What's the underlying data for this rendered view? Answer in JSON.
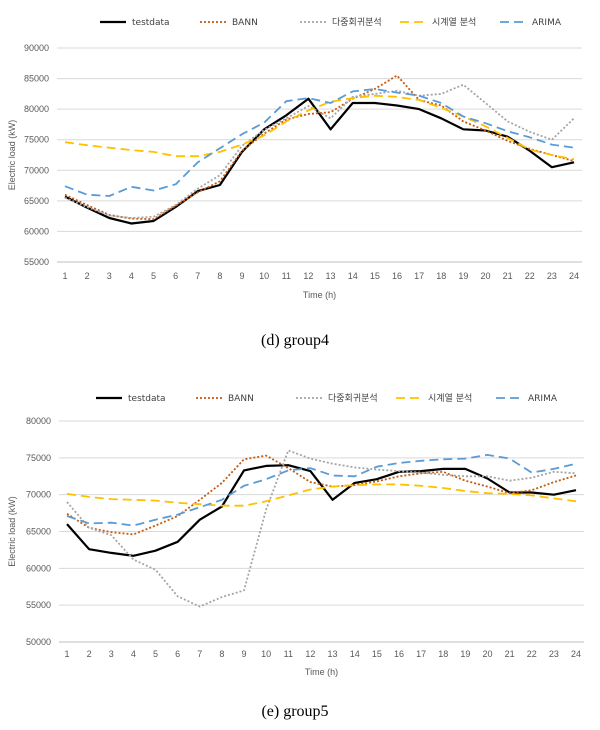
{
  "figures": [
    {
      "caption": "(d)  group4"
    },
    {
      "caption": "(e)  group5"
    }
  ],
  "chart_data": [
    {
      "type": "line",
      "title": "",
      "xlabel": "Time (h)",
      "ylabel": "Electric load (kW)",
      "ylim": [
        55000,
        90000
      ],
      "yticks": [
        55000,
        60000,
        65000,
        70000,
        75000,
        80000,
        85000,
        90000
      ],
      "categories": [
        "1",
        "2",
        "3",
        "4",
        "5",
        "6",
        "7",
        "8",
        "9",
        "10",
        "11",
        "12",
        "13",
        "14",
        "15",
        "16",
        "17",
        "18",
        "19",
        "20",
        "21",
        "22",
        "23",
        "24"
      ],
      "grid": "horizontal",
      "legend": "top",
      "series": [
        {
          "name": "testdata",
          "color": "#000000",
          "style": "solid",
          "values": [
            65700,
            63900,
            62200,
            61300,
            61700,
            64000,
            66600,
            67600,
            73000,
            76700,
            79000,
            81700,
            76700,
            81000,
            81000,
            80600,
            80000,
            78500,
            76700,
            76500,
            75500,
            73200,
            70500,
            71300
          ]
        },
        {
          "name": "BANN",
          "color": "#c55a11",
          "style": "dotted",
          "values": [
            66000,
            64300,
            62700,
            62100,
            62000,
            64200,
            66400,
            68200,
            73200,
            76000,
            78300,
            79200,
            79500,
            81700,
            83300,
            85500,
            81500,
            80600,
            78000,
            76500,
            74800,
            73500,
            72500,
            71500
          ]
        },
        {
          "name": "다중회귀분석",
          "color": "#a5a5a5",
          "style": "dotted",
          "values": [
            65500,
            64000,
            62600,
            62200,
            62400,
            64300,
            67000,
            69200,
            74000,
            76600,
            78500,
            80500,
            78500,
            82000,
            82500,
            83000,
            82200,
            82500,
            84000,
            81000,
            78000,
            76300,
            75000,
            78500
          ]
        },
        {
          "name": "시계열 분석",
          "color": "#ffc000",
          "style": "dashed",
          "values": [
            74600,
            74100,
            73700,
            73300,
            73000,
            72300,
            72300,
            73000,
            74200,
            75700,
            78000,
            79800,
            81200,
            81800,
            82200,
            82000,
            81500,
            80200,
            78800,
            77200,
            75300,
            73400,
            72500,
            71800
          ]
        },
        {
          "name": "ARIMA",
          "color": "#5b9bd5",
          "style": "dashed",
          "values": [
            67400,
            66000,
            65800,
            67300,
            66700,
            67700,
            71300,
            73600,
            75900,
            77800,
            81300,
            81800,
            81000,
            82900,
            83300,
            82700,
            82200,
            81000,
            78800,
            77700,
            76400,
            75400,
            74200,
            73700
          ]
        }
      ]
    },
    {
      "type": "line",
      "title": "",
      "xlabel": "Time (h)",
      "ylabel": "Electric load (kW)",
      "ylim": [
        50000,
        80000
      ],
      "yticks": [
        50000,
        55000,
        60000,
        65000,
        70000,
        75000,
        80000
      ],
      "categories": [
        "1",
        "2",
        "3",
        "4",
        "5",
        "6",
        "7",
        "8",
        "9",
        "10",
        "11",
        "12",
        "13",
        "14",
        "15",
        "16",
        "17",
        "18",
        "19",
        "20",
        "21",
        "22",
        "23",
        "24"
      ],
      "grid": "horizontal",
      "legend": "top",
      "series": [
        {
          "name": "testdata",
          "color": "#000000",
          "style": "solid",
          "values": [
            66000,
            62600,
            62100,
            61700,
            62400,
            63600,
            66600,
            68400,
            73300,
            73900,
            74000,
            73200,
            69300,
            71600,
            72100,
            73100,
            73200,
            73500,
            73500,
            72200,
            70300,
            70300,
            70000,
            70600
          ]
        },
        {
          "name": "BANN",
          "color": "#c55a11",
          "style": "dotted",
          "values": [
            67400,
            65500,
            64900,
            64600,
            65800,
            67100,
            69300,
            71600,
            74800,
            75300,
            73600,
            71700,
            71100,
            71300,
            71800,
            72500,
            72900,
            73100,
            71900,
            71100,
            70200,
            70600,
            71700,
            72600
          ]
        },
        {
          "name": "다중회귀분석",
          "color": "#a5a5a5",
          "style": "dotted",
          "values": [
            69000,
            65500,
            64500,
            61200,
            59800,
            56200,
            54800,
            56100,
            57000,
            68000,
            76000,
            74900,
            74200,
            73700,
            73400,
            73200,
            73000,
            72700,
            72500,
            72500,
            71900,
            72300,
            73100,
            72900
          ]
        },
        {
          "name": "시계열 분석",
          "color": "#ffc000",
          "style": "dashed",
          "values": [
            70100,
            69700,
            69400,
            69300,
            69200,
            68900,
            68700,
            68500,
            68500,
            69100,
            69900,
            70700,
            71100,
            71300,
            71400,
            71400,
            71200,
            70900,
            70500,
            70200,
            70100,
            69900,
            69500,
            69100
          ]
        },
        {
          "name": "ARIMA",
          "color": "#5b9bd5",
          "style": "dashed",
          "values": [
            67100,
            66100,
            66200,
            65800,
            66600,
            67300,
            68300,
            69300,
            71200,
            72100,
            73300,
            73600,
            72600,
            72500,
            73800,
            74300,
            74600,
            74800,
            74900,
            75400,
            74900,
            73000,
            73500,
            74200
          ]
        }
      ]
    }
  ]
}
